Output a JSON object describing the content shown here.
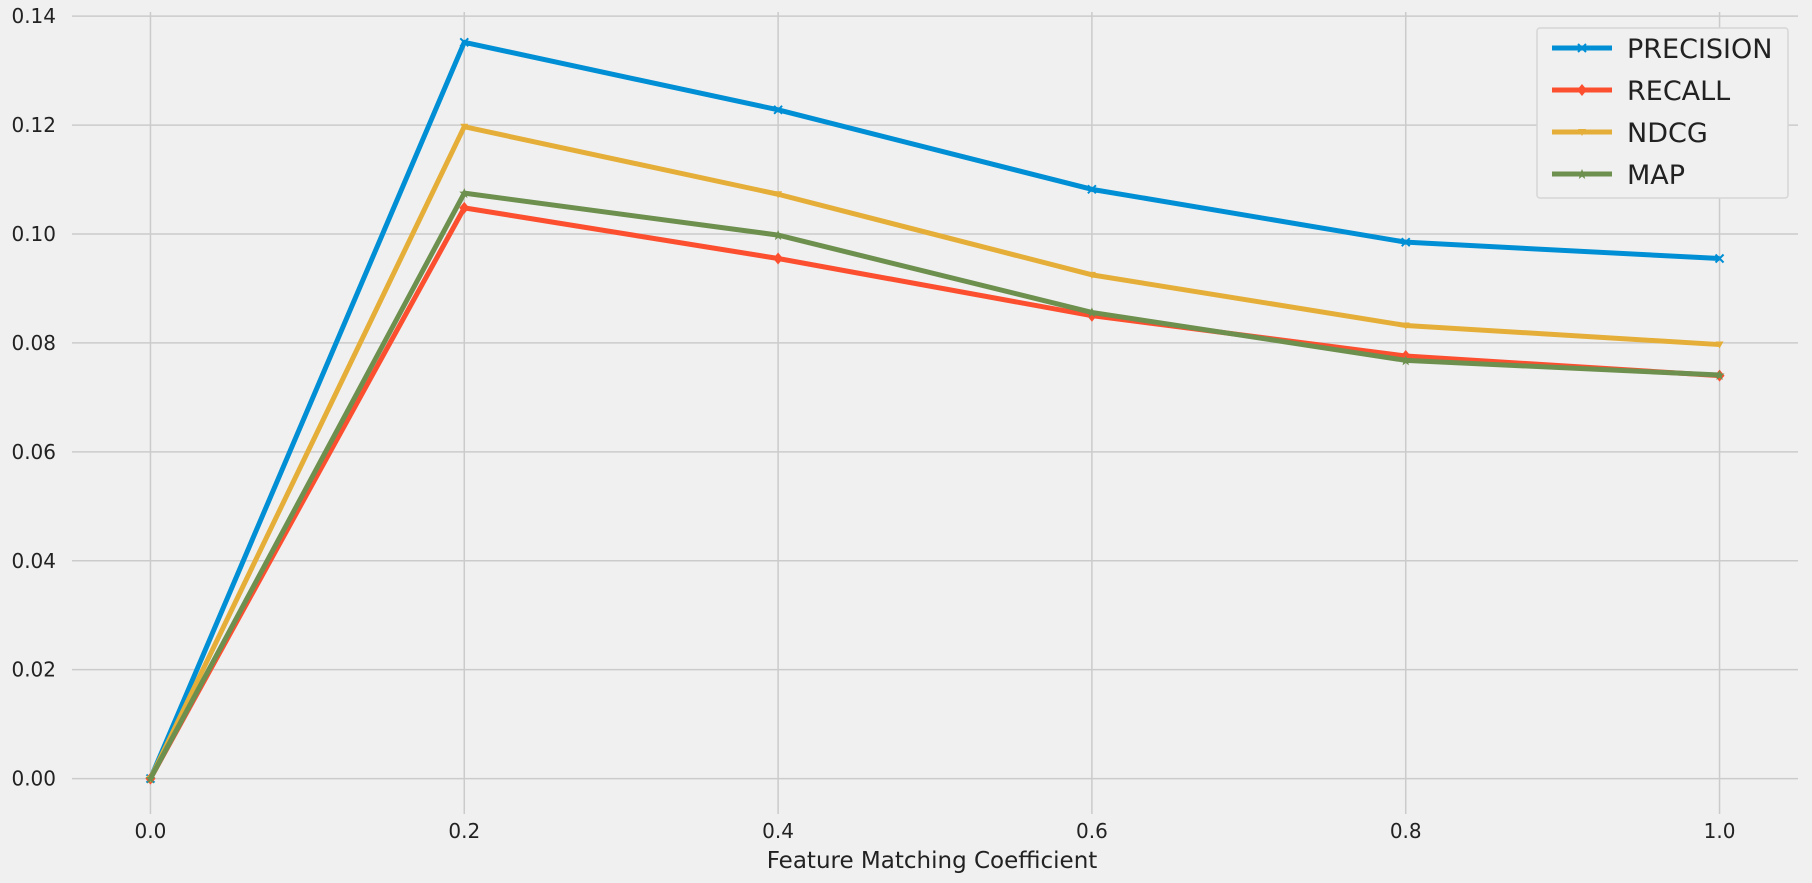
{
  "chart_data": {
    "type": "line",
    "xlabel": "Feature Matching Coefficient",
    "ylabel": "",
    "title": "",
    "x": [
      0.0,
      0.2,
      0.4,
      0.6,
      0.8,
      1.0
    ],
    "xlim": [
      -0.05,
      1.05
    ],
    "ylim": [
      -0.0065,
      0.1415
    ],
    "xticks": [
      "0.0",
      "0.2",
      "0.4",
      "0.6",
      "0.8",
      "1.0"
    ],
    "yticks": [
      "0.00",
      "0.02",
      "0.04",
      "0.06",
      "0.08",
      "0.10",
      "0.12",
      "0.14"
    ],
    "grid": true,
    "legend_position": "top-right",
    "series": [
      {
        "name": "PRECISION",
        "color": "#008fd5",
        "marker": "x-icon",
        "values": [
          0.0,
          0.1352,
          0.1228,
          0.1082,
          0.0985,
          0.0955
        ]
      },
      {
        "name": "RECALL",
        "color": "#fc4f30",
        "marker": "diamond-icon",
        "values": [
          0.0,
          0.1048,
          0.0955,
          0.085,
          0.0776,
          0.074
        ]
      },
      {
        "name": "NDCG",
        "color": "#e5ae38",
        "marker": "triangle-icon",
        "values": [
          0.0,
          0.1197,
          0.1073,
          0.0925,
          0.0832,
          0.0797
        ]
      },
      {
        "name": "MAP",
        "color": "#6d904f",
        "marker": "star-icon",
        "values": [
          0.0,
          0.1075,
          0.0998,
          0.0856,
          0.0768,
          0.0741
        ]
      }
    ]
  }
}
